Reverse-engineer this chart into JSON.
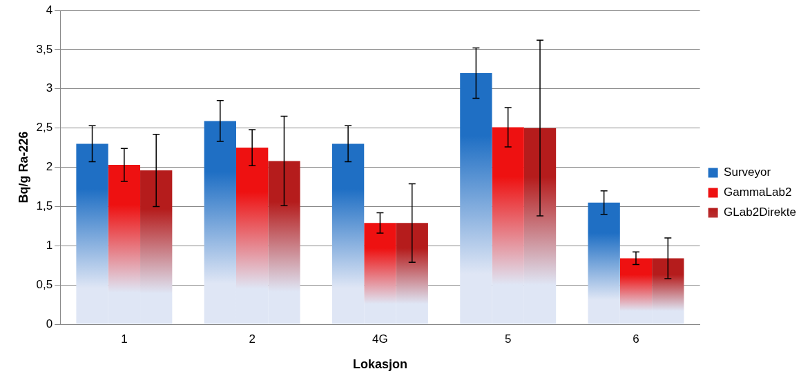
{
  "chart_data": {
    "type": "bar",
    "xlabel": "Lokasjon",
    "ylabel": "Bq/g Ra-226",
    "categories": [
      "1",
      "2",
      "4G",
      "5",
      "6"
    ],
    "series": [
      {
        "name": "Surveyor",
        "color": "#1f6fc4",
        "values": [
          2.3,
          2.59,
          2.3,
          3.2,
          1.55
        ],
        "errors": [
          0.23,
          0.26,
          0.23,
          0.32,
          0.15
        ]
      },
      {
        "name": "GammaLab2",
        "color": "#ee1111",
        "values": [
          2.03,
          2.25,
          1.29,
          2.51,
          0.84
        ],
        "errors": [
          0.21,
          0.23,
          0.13,
          0.25,
          0.08
        ]
      },
      {
        "name": "GLab2Direkte",
        "color": "#b51c1c",
        "values": [
          1.96,
          2.08,
          1.29,
          2.5,
          0.84
        ],
        "errors": [
          0.46,
          0.57,
          0.5,
          1.12,
          0.26
        ]
      }
    ],
    "ylim": [
      0,
      4
    ],
    "yticks": [
      0,
      {
        "value": 0.5,
        "label": "0,5"
      },
      1,
      {
        "value": 1.5,
        "label": "1,5"
      },
      2,
      {
        "value": 2.5,
        "label": "2,5"
      },
      3,
      {
        "value": 3.5,
        "label": "3,5"
      },
      4
    ],
    "grid": "y",
    "legend": "right"
  }
}
